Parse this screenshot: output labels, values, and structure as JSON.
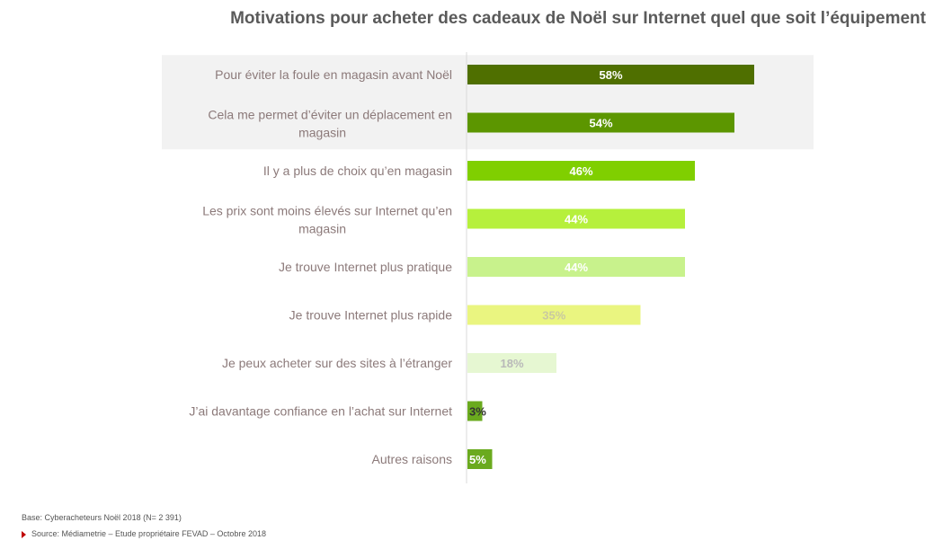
{
  "chart_data": {
    "type": "bar",
    "orientation": "horizontal",
    "title": "Motivations pour acheter des cadeaux de Noël sur  Internet quel que soit l’équipement",
    "categories": [
      [
        "Pour éviter la foule en magasin avant Noël"
      ],
      [
        "Cela me permet d’éviter un déplacement en",
        "magasin"
      ],
      [
        "Il y a plus de choix qu’en magasin"
      ],
      [
        "Les prix sont moins élevés sur Internet qu’en",
        "magasin"
      ],
      [
        "Je trouve Internet plus pratique"
      ],
      [
        "Je trouve Internet plus rapide"
      ],
      [
        "Je peux acheter sur des sites à l’étranger"
      ],
      [
        "J’ai davantage confiance en l’achat sur Internet"
      ],
      [
        "Autres raisons"
      ]
    ],
    "values": [
      58,
      54,
      46,
      44,
      44,
      35,
      18,
      3,
      5
    ],
    "value_labels": [
      "58%",
      "54%",
      "46%",
      "44%",
      "44%",
      "35%",
      "18%",
      "3%",
      "5%"
    ],
    "bar_colors": [
      "#4f6f00",
      "#5c9600",
      "#80cf00",
      "#b6f03c",
      "#c8f28c",
      "#eaf580",
      "#e6f7d2",
      "#6aaa1e",
      "#6aaa1e"
    ],
    "label_colors": [
      "#ffffff",
      "#ffffff",
      "#ffffff",
      "#ffffff",
      "#ffffff",
      "#c9c9a0",
      "#b9b9b9",
      "#333333",
      "#ffffff"
    ],
    "highlighted_rows": [
      0,
      1
    ],
    "highlight_color": "#f2f2f2",
    "xlim": [
      0,
      100
    ]
  },
  "footer": {
    "base": "Base: Cyberacheteurs Noël 2018 (N= 2 391)",
    "source": "Source: Médiametrie – Etude propriétaire FEVAD – Octobre 2018"
  }
}
